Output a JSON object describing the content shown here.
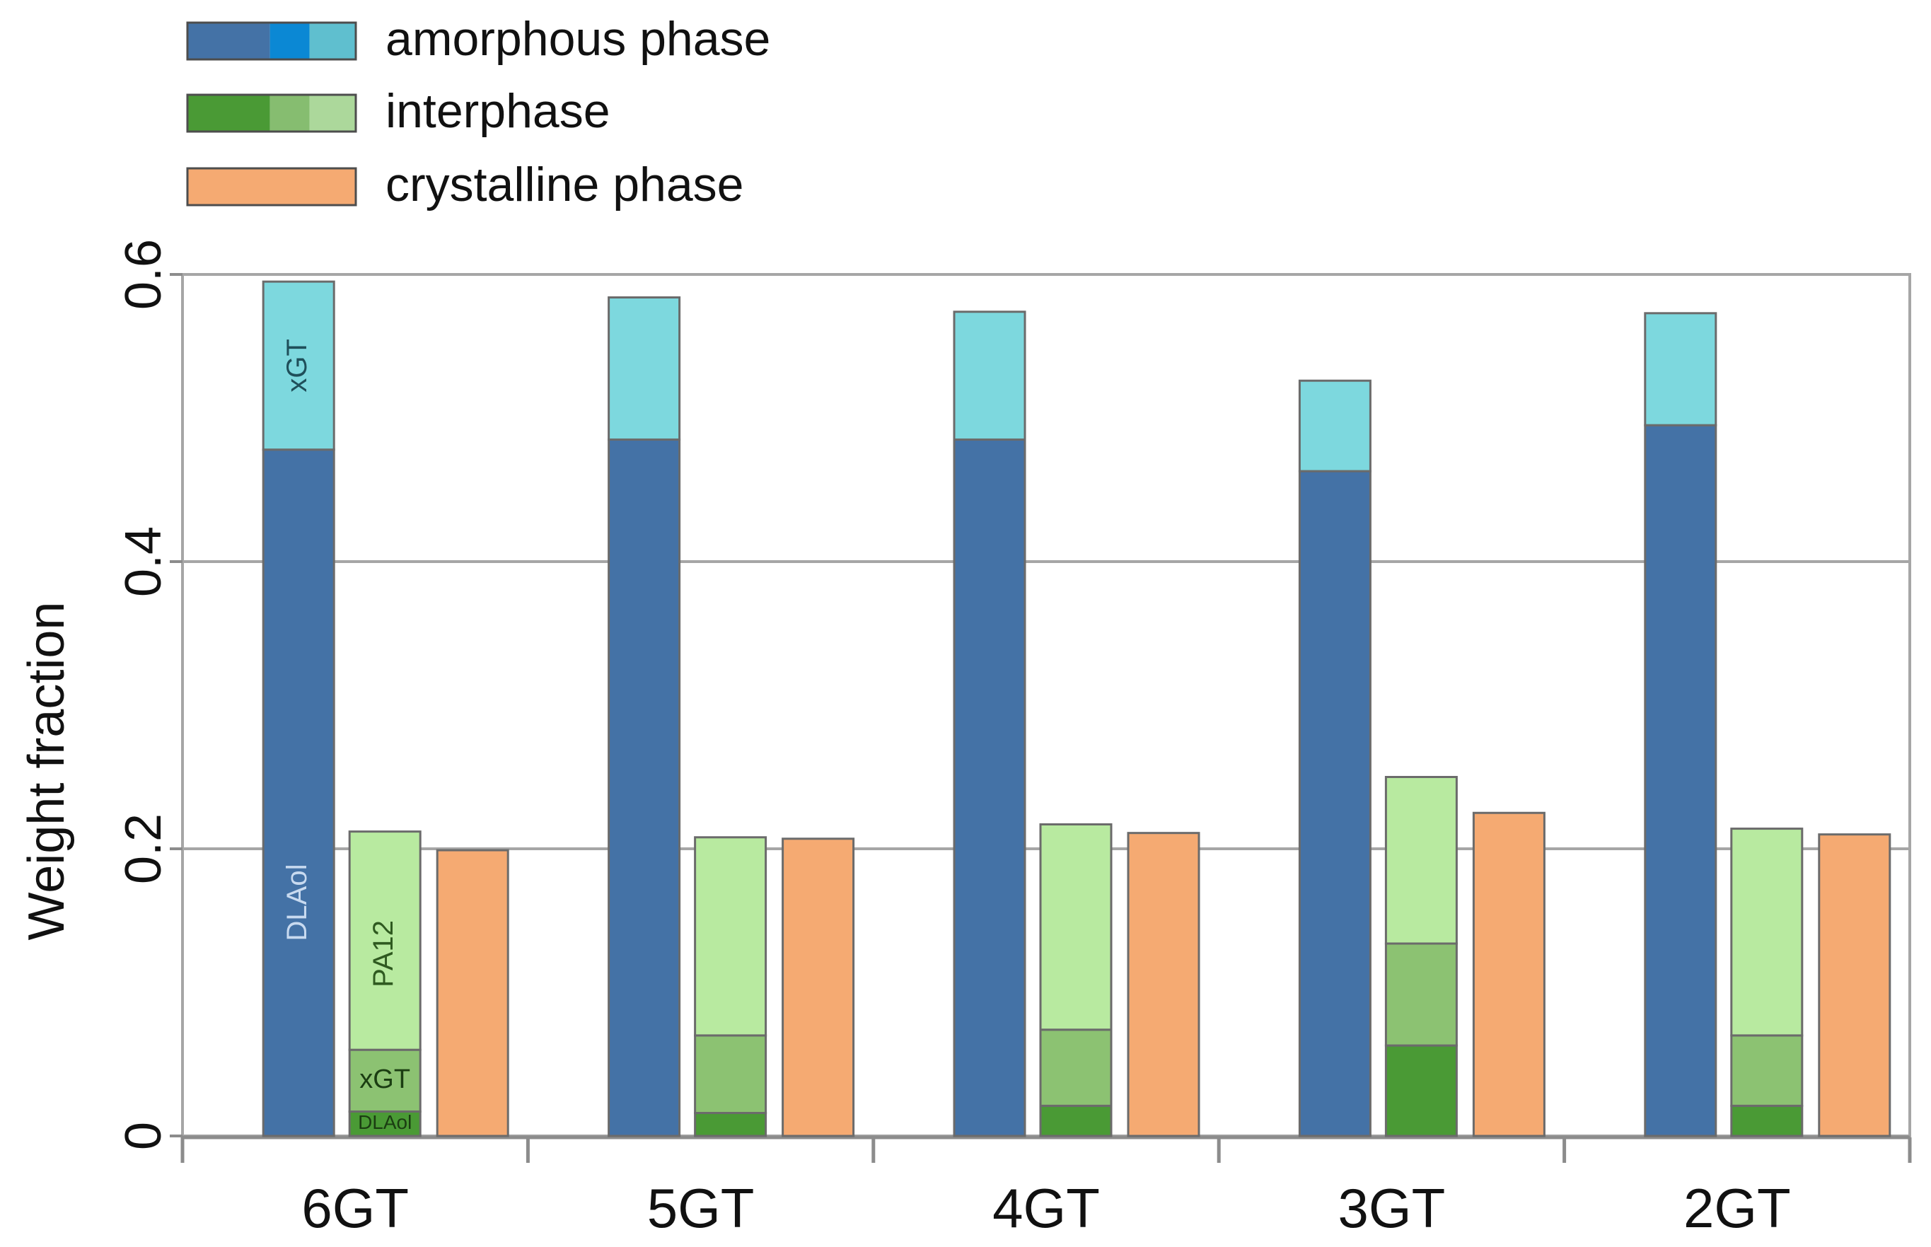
{
  "chart_data": {
    "type": "bar",
    "ylabel": "Weight fraction",
    "ylim": [
      0,
      0.6
    ],
    "yticks": [
      {
        "value": 0,
        "label": "0"
      },
      {
        "value": 0.2,
        "label": "0.2"
      },
      {
        "value": 0.4,
        "label": "0.4"
      },
      {
        "value": 0.6,
        "label": "0.6"
      }
    ],
    "grid": true,
    "legend_position": "top-left",
    "legend": [
      {
        "key": "amorphous",
        "label": "amorphous phase",
        "colors": [
          "#4472a6",
          "#0b88d4",
          "#5fbfcf"
        ]
      },
      {
        "key": "interphase",
        "label": "interphase",
        "colors": [
          "#4a9a35",
          "#86bd70",
          "#acd89b"
        ]
      },
      {
        "key": "crystalline",
        "label": "crystalline phase",
        "colors": [
          "#f5aa72"
        ]
      }
    ],
    "categories": [
      "6GT",
      "5GT",
      "4GT",
      "3GT",
      "2GT"
    ],
    "series": [
      {
        "name": "amorphous phase",
        "components": [
          {
            "name": "DLAol",
            "color": "#4472a6",
            "values": [
              0.478,
              0.485,
              0.485,
              0.463,
              0.495
            ]
          },
          {
            "name": "xGT",
            "color": "#7dd8de",
            "values": [
              0.117,
              0.099,
              0.089,
              0.063,
              0.078
            ]
          }
        ]
      },
      {
        "name": "interphase",
        "components": [
          {
            "name": "DLAol",
            "color": "#4a9a35",
            "values": [
              0.017,
              0.016,
              0.021,
              0.063,
              0.021
            ]
          },
          {
            "name": "xGT",
            "color": "#8cc272",
            "values": [
              0.043,
              0.054,
              0.053,
              0.071,
              0.049
            ]
          },
          {
            "name": "PA12",
            "color": "#b8eaa0",
            "values": [
              0.152,
              0.138,
              0.143,
              0.116,
              0.144
            ]
          }
        ]
      },
      {
        "name": "crystalline phase",
        "components": [
          {
            "name": "crystalline",
            "color": "#f5aa72",
            "values": [
              0.199,
              0.207,
              0.211,
              0.225,
              0.21
            ]
          }
        ]
      }
    ],
    "bar_annotations": [
      {
        "category": "6GT",
        "series": 0,
        "component": 0,
        "text": "DLAol",
        "color": "#c8daf0"
      },
      {
        "category": "6GT",
        "series": 0,
        "component": 1,
        "text": "xGT",
        "color": "#1f4f5a"
      },
      {
        "category": "6GT",
        "series": 1,
        "component": 0,
        "text": "DLAol",
        "color": "#1b3d12"
      },
      {
        "category": "6GT",
        "series": 1,
        "component": 1,
        "text": "xGT",
        "color": "#1b3d12"
      },
      {
        "category": "6GT",
        "series": 1,
        "component": 2,
        "text": "PA12",
        "color": "#2f5a20"
      }
    ]
  }
}
